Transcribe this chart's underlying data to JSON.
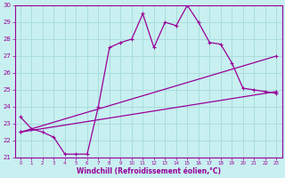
{
  "xlabel": "Windchill (Refroidissement éolien,°C)",
  "xlim": [
    -0.5,
    23.5
  ],
  "ylim": [
    21,
    30
  ],
  "xticks": [
    0,
    1,
    2,
    3,
    4,
    5,
    6,
    7,
    8,
    9,
    10,
    11,
    12,
    13,
    14,
    15,
    16,
    17,
    18,
    19,
    20,
    21,
    22,
    23
  ],
  "yticks": [
    21,
    22,
    23,
    24,
    25,
    26,
    27,
    28,
    29,
    30
  ],
  "bg_color": "#c8f0f0",
  "line_color": "#990099",
  "grid_color": "#aadddd",
  "line1_x": [
    0,
    1,
    2,
    3,
    4,
    5,
    6,
    7,
    8,
    9,
    10,
    11,
    12,
    13,
    14,
    15,
    16,
    17,
    18,
    19,
    20,
    21,
    22,
    23
  ],
  "line1_y": [
    23.4,
    22.7,
    22.5,
    22.2,
    21.2,
    21.2,
    21.2,
    24.0,
    27.5,
    27.8,
    28.0,
    29.5,
    27.5,
    29.0,
    28.8,
    30.0,
    29.0,
    27.8,
    27.7,
    26.6,
    25.1,
    25.0,
    24.9,
    24.8
  ],
  "line2_x": [
    0,
    23
  ],
  "line2_y": [
    22.5,
    27.0
  ],
  "line3_x": [
    0,
    23
  ],
  "line3_y": [
    22.5,
    24.9
  ],
  "marker": "+"
}
